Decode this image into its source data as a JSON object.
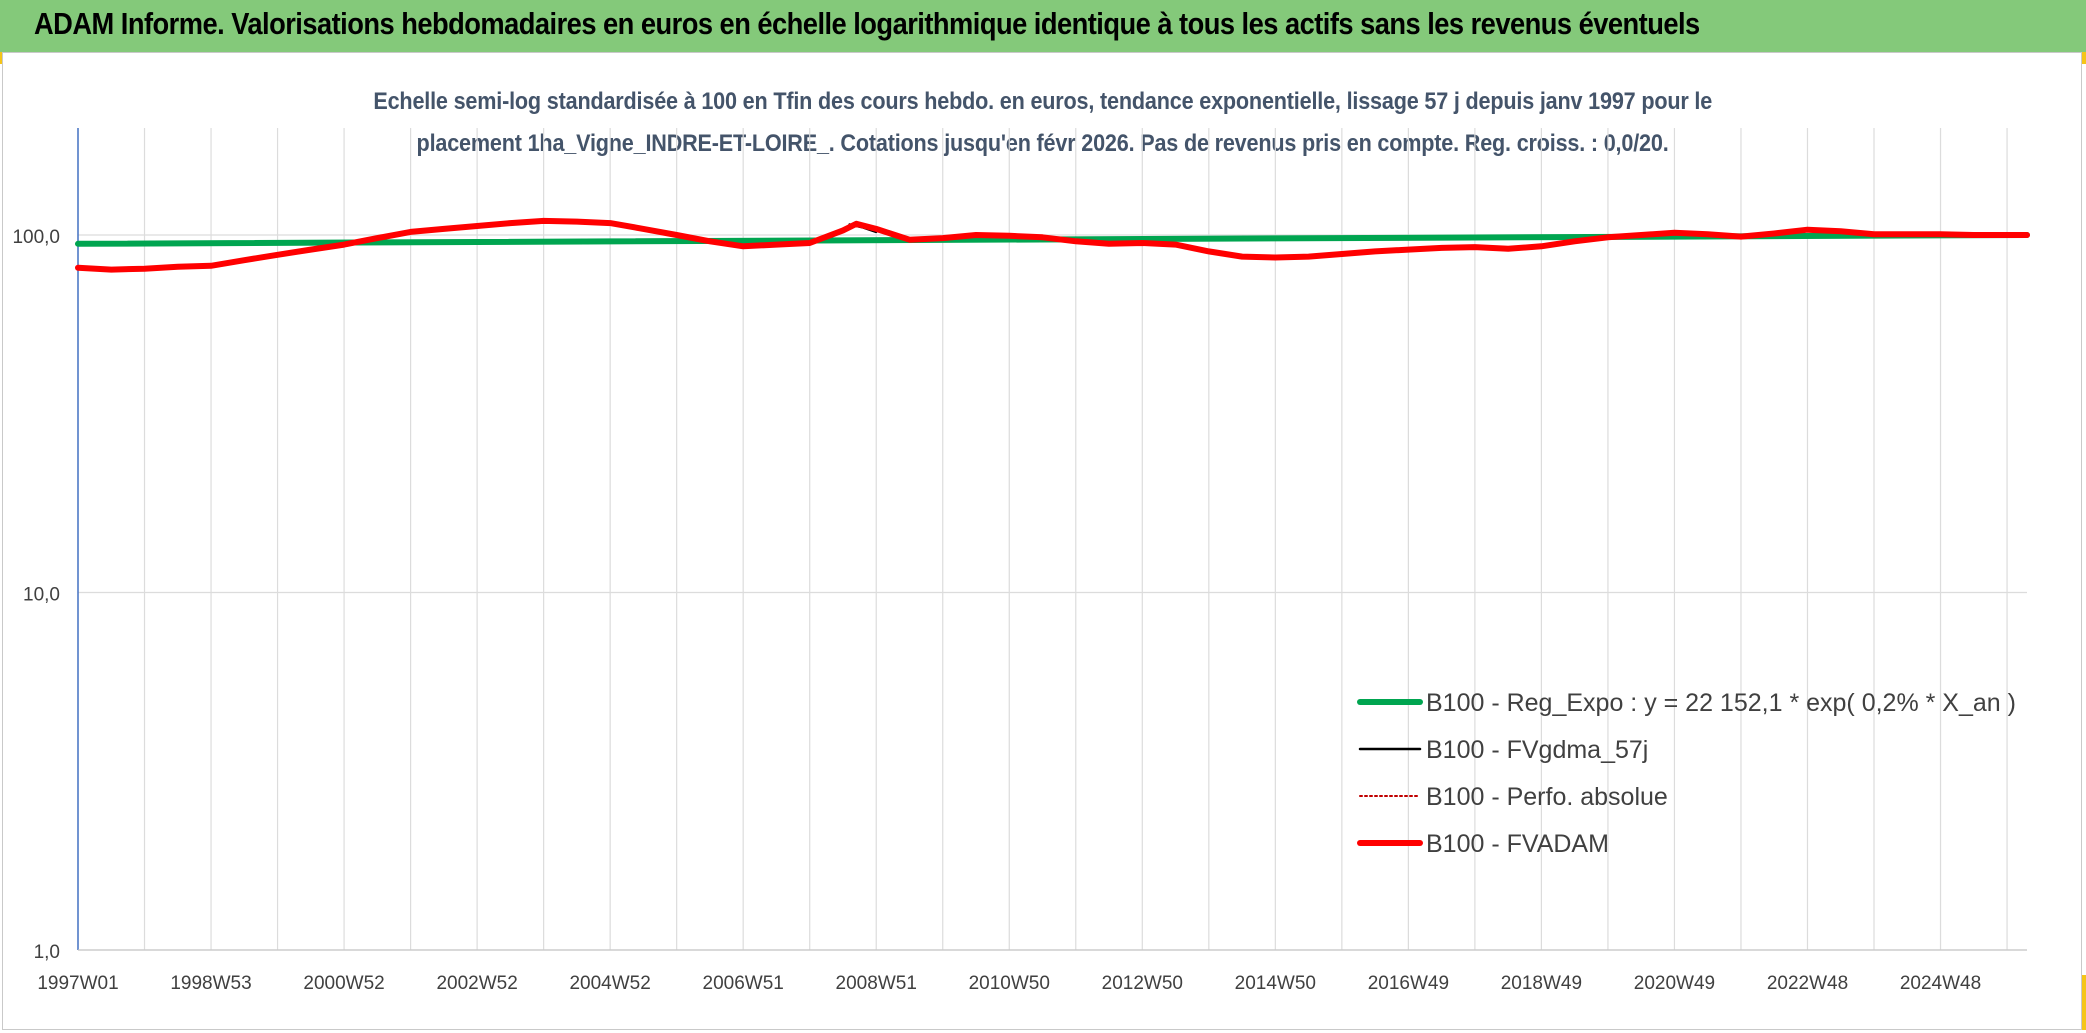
{
  "banner": {
    "title": "ADAM Informe. Valorisations hebdomadaires en euros en échelle logarithmique identique à tous les actifs sans les revenus éventuels"
  },
  "chart_data": {
    "type": "line",
    "title_line1": "Echelle semi-log standardisée à 100 en Tfin des cours hebdo. en euros, tendance exponentielle, lissage 57 j depuis janv 1997 pour le",
    "title_line2": "placement 1ha_Vigne_INDRE-ET-LOIRE_. Cotations jusqu'en févr 2026. Pas de revenus pris en compte. Reg. croiss. : 0,0/20.",
    "y_scale": "log",
    "ylim": [
      1,
      200
    ],
    "y_ticks": [
      {
        "value": 1,
        "label": "1,0"
      },
      {
        "value": 10,
        "label": "10,0"
      },
      {
        "value": 100,
        "label": "100,0"
      }
    ],
    "x_range": [
      1997.0,
      2026.3
    ],
    "x_ticks": [
      {
        "x": 1997.0,
        "label": "1997W01"
      },
      {
        "x": 1999.0,
        "label": "1998W53"
      },
      {
        "x": 2001.0,
        "label": "2000W52"
      },
      {
        "x": 2003.0,
        "label": "2002W52"
      },
      {
        "x": 2005.0,
        "label": "2004W52"
      },
      {
        "x": 2007.0,
        "label": "2006W51"
      },
      {
        "x": 2009.0,
        "label": "2008W51"
      },
      {
        "x": 2011.0,
        "label": "2010W50"
      },
      {
        "x": 2013.0,
        "label": "2012W50"
      },
      {
        "x": 2015.0,
        "label": "2014W50"
      },
      {
        "x": 2017.0,
        "label": "2016W49"
      },
      {
        "x": 2019.0,
        "label": "2018W49"
      },
      {
        "x": 2021.0,
        "label": "2020W49"
      },
      {
        "x": 2023.0,
        "label": "2022W48"
      },
      {
        "x": 2025.0,
        "label": "2024W48"
      }
    ],
    "grid": "vertical and horizontal",
    "legend_position": "bottom-right",
    "series": [
      {
        "name": "B100 - Reg_Expo : y = 22 152,1 * exp( 0,2% *  X_an )",
        "color": "#00a550",
        "style": "solid",
        "x": [
          1997.0,
          2026.3
        ],
        "y": [
          94.5,
          100.0
        ]
      },
      {
        "name": "B100 - FVgdma_57j",
        "color": "#000000",
        "style": "solid",
        "x": [
          2008.6,
          2008.8,
          2009.0
        ],
        "y": [
          107,
          105,
          102
        ]
      },
      {
        "name": "B100 - Perfo. absolue",
        "color": "#c00000",
        "style": "dotted",
        "x": [],
        "y": []
      },
      {
        "name": "B100 - FVADAM",
        "color": "#ff0000",
        "style": "solid",
        "x": [
          1997.0,
          1997.5,
          1998.0,
          1998.5,
          1999.0,
          1999.5,
          2000.0,
          2000.5,
          2001.0,
          2001.5,
          2002.0,
          2002.5,
          2003.0,
          2003.5,
          2004.0,
          2004.5,
          2005.0,
          2005.5,
          2006.0,
          2006.5,
          2007.0,
          2007.5,
          2008.0,
          2008.5,
          2008.7,
          2009.0,
          2009.5,
          2010.0,
          2010.5,
          2011.0,
          2011.5,
          2012.0,
          2012.5,
          2013.0,
          2013.5,
          2014.0,
          2014.5,
          2015.0,
          2015.5,
          2016.0,
          2016.5,
          2017.0,
          2017.5,
          2018.0,
          2018.5,
          2019.0,
          2019.5,
          2020.0,
          2020.5,
          2021.0,
          2021.5,
          2022.0,
          2022.5,
          2023.0,
          2023.5,
          2024.0,
          2024.5,
          2025.0,
          2025.5,
          2026.3
        ],
        "y": [
          81,
          80,
          80.5,
          81.5,
          82,
          85,
          88,
          91,
          94,
          98,
          102,
          104,
          106,
          108,
          109.5,
          109,
          108,
          104,
          100,
          96,
          93,
          94,
          95,
          103,
          107.5,
          104,
          97,
          98,
          100,
          99.5,
          98.5,
          96,
          94.5,
          95,
          94,
          90,
          87,
          86.5,
          87,
          88.5,
          90,
          91,
          92,
          92.5,
          91.5,
          93,
          96,
          98.5,
          100,
          101.5,
          100.5,
          99,
          101,
          103.5,
          102.5,
          100.5,
          100.5,
          100.5,
          100,
          100
        ]
      }
    ]
  }
}
